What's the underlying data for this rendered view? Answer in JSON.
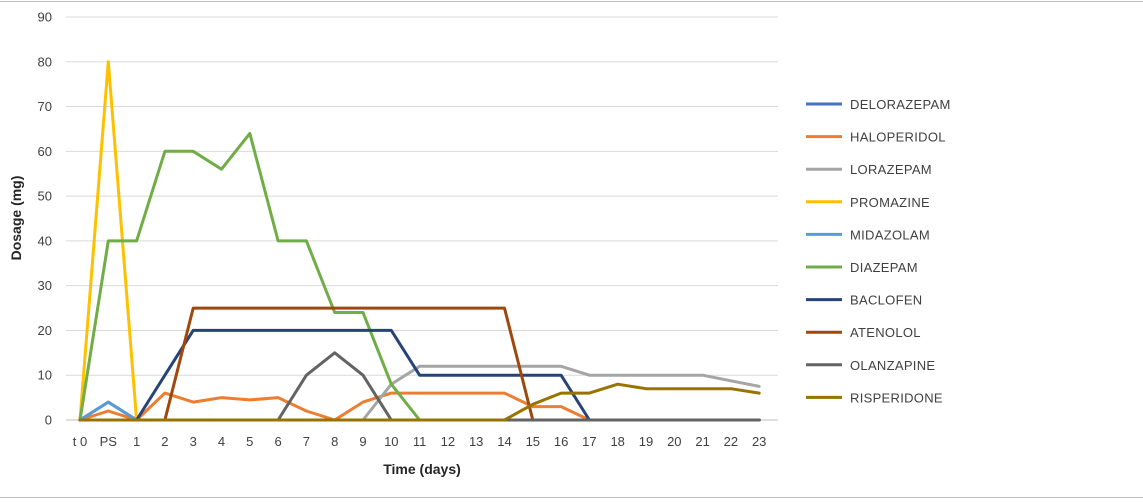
{
  "chart_data": {
    "type": "line",
    "xlabel": "Time (days)",
    "ylabel": "Dosage (mg)",
    "ylim": [
      0,
      90
    ],
    "yticks": [
      0,
      10,
      20,
      30,
      40,
      50,
      60,
      70,
      80,
      90
    ],
    "grid": "horizontal",
    "legend_position": "right",
    "categories": [
      "t 0",
      "PS",
      "1",
      "2",
      "3",
      "4",
      "5",
      "6",
      "7",
      "8",
      "9",
      "10",
      "11",
      "12",
      "13",
      "14",
      "15",
      "16",
      "17",
      "18",
      "19",
      "20",
      "21",
      "22",
      "23"
    ],
    "series": [
      {
        "name": "DELORAZEPAM",
        "color": "#4472c4",
        "values": [
          0,
          4,
          0,
          0,
          0,
          0,
          0,
          0,
          0,
          0,
          0,
          0,
          0,
          0,
          0,
          0,
          0,
          0,
          0,
          0,
          0,
          0,
          0,
          0,
          0
        ]
      },
      {
        "name": "HALOPERIDOL",
        "color": "#ed7d31",
        "values": [
          0,
          2,
          0,
          6,
          4,
          5,
          4.5,
          5,
          2,
          0,
          4,
          6,
          6,
          6,
          6,
          6,
          3,
          3,
          0,
          0,
          0,
          0,
          0,
          0,
          0
        ]
      },
      {
        "name": "LORAZEPAM",
        "color": "#a5a5a5",
        "values": [
          0,
          0,
          0,
          0,
          0,
          0,
          0,
          0,
          0,
          0,
          0,
          8,
          12,
          12,
          12,
          12,
          12,
          12,
          10,
          10,
          10,
          10,
          10,
          8.75,
          7.5
        ]
      },
      {
        "name": "PROMAZINE",
        "color": "#ffc000",
        "values": [
          0,
          80,
          0,
          0,
          0,
          0,
          0,
          0,
          0,
          0,
          0,
          0,
          0,
          0,
          0,
          0,
          0,
          0,
          0,
          0,
          0,
          0,
          0,
          0,
          0
        ]
      },
      {
        "name": "MIDAZOLAM",
        "color": "#5b9bd5",
        "values": [
          0,
          4,
          0,
          0,
          0,
          0,
          0,
          0,
          0,
          0,
          0,
          0,
          0,
          0,
          0,
          0,
          0,
          0,
          0,
          0,
          0,
          0,
          0,
          0,
          0
        ]
      },
      {
        "name": "DIAZEPAM",
        "color": "#70ad47",
        "values": [
          0,
          40,
          40,
          60,
          60,
          56,
          64,
          40,
          40,
          24,
          24,
          8,
          0,
          0,
          0,
          0,
          0,
          0,
          0,
          0,
          0,
          0,
          0,
          0,
          0
        ]
      },
      {
        "name": "BACLOFEN",
        "color": "#264478",
        "values": [
          0,
          0,
          0,
          10,
          20,
          20,
          20,
          20,
          20,
          20,
          20,
          20,
          10,
          10,
          10,
          10,
          10,
          10,
          0,
          0,
          0,
          0,
          0,
          0,
          0
        ]
      },
      {
        "name": "ATENOLOL",
        "color": "#9e480e",
        "values": [
          0,
          0,
          0,
          0,
          25,
          25,
          25,
          25,
          25,
          25,
          25,
          25,
          25,
          25,
          25,
          25,
          0,
          0,
          0,
          0,
          0,
          0,
          0,
          0,
          0
        ]
      },
      {
        "name": "OLANZAPINE",
        "color": "#636363",
        "values": [
          0,
          0,
          0,
          0,
          0,
          0,
          0,
          0,
          10,
          15,
          10,
          0,
          0,
          0,
          0,
          0,
          0,
          0,
          0,
          0,
          0,
          0,
          0,
          0,
          0
        ]
      },
      {
        "name": "RISPERIDONE",
        "color": "#997300",
        "values": [
          0,
          0,
          0,
          0,
          0,
          0,
          0,
          0,
          0,
          0,
          0,
          0,
          0,
          0,
          0,
          0,
          3.5,
          6,
          6,
          8,
          7,
          7,
          7,
          7,
          6
        ]
      }
    ]
  }
}
